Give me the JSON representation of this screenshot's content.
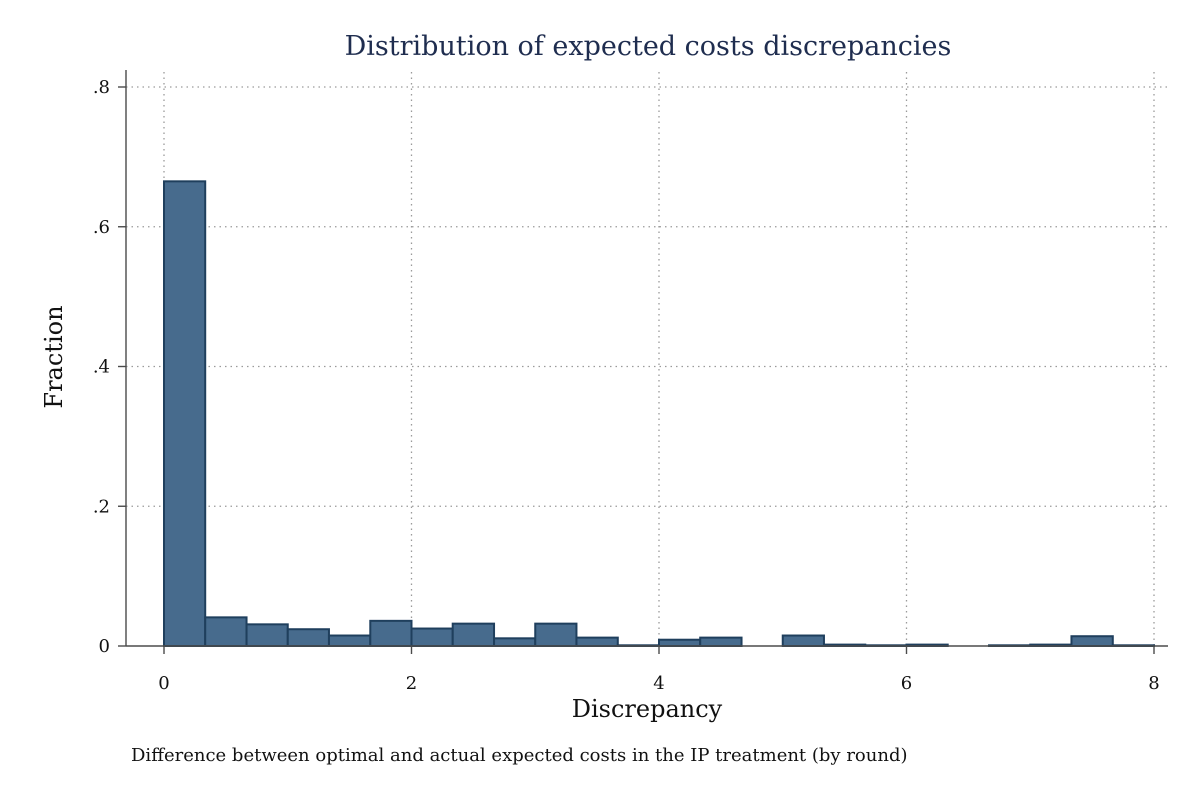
{
  "chart_data": {
    "type": "bar",
    "title": "Distribution of expected costs discrepancies",
    "xlabel": "Discrepancy",
    "ylabel": "Fraction",
    "note": "Difference between optimal and actual expected costs in the IP treatment (by round)",
    "xlim": [
      0,
      8
    ],
    "ylim": [
      0,
      0.8
    ],
    "x_ticks": [
      0,
      2,
      4,
      6,
      8
    ],
    "x_tick_labels": [
      "0",
      "2",
      "4",
      "6",
      "8"
    ],
    "y_ticks": [
      0,
      0.2,
      0.4,
      0.6,
      0.8
    ],
    "y_tick_labels": [
      "0",
      ".2",
      ".4",
      ".6",
      ".8"
    ],
    "grid": "both-dotted",
    "bin_width": 0.333,
    "bins": [
      {
        "start": 0.0,
        "end": 0.333,
        "value": 0.665
      },
      {
        "start": 0.333,
        "end": 0.667,
        "value": 0.041
      },
      {
        "start": 0.667,
        "end": 1.0,
        "value": 0.031
      },
      {
        "start": 1.0,
        "end": 1.333,
        "value": 0.024
      },
      {
        "start": 1.333,
        "end": 1.667,
        "value": 0.015
      },
      {
        "start": 1.667,
        "end": 2.0,
        "value": 0.036
      },
      {
        "start": 2.0,
        "end": 2.333,
        "value": 0.025
      },
      {
        "start": 2.333,
        "end": 2.667,
        "value": 0.032
      },
      {
        "start": 2.667,
        "end": 3.0,
        "value": 0.011
      },
      {
        "start": 3.0,
        "end": 3.333,
        "value": 0.032
      },
      {
        "start": 3.333,
        "end": 3.667,
        "value": 0.012
      },
      {
        "start": 3.667,
        "end": 4.0,
        "value": 0.001
      },
      {
        "start": 4.0,
        "end": 4.333,
        "value": 0.009
      },
      {
        "start": 4.333,
        "end": 4.667,
        "value": 0.012
      },
      {
        "start": 4.667,
        "end": 5.0,
        "value": 0.0
      },
      {
        "start": 5.0,
        "end": 5.333,
        "value": 0.015
      },
      {
        "start": 5.333,
        "end": 5.667,
        "value": 0.002
      },
      {
        "start": 5.667,
        "end": 6.0,
        "value": 0.001
      },
      {
        "start": 6.0,
        "end": 6.333,
        "value": 0.002
      },
      {
        "start": 6.333,
        "end": 6.667,
        "value": 0.0
      },
      {
        "start": 6.667,
        "end": 7.0,
        "value": 0.001
      },
      {
        "start": 7.0,
        "end": 7.333,
        "value": 0.002
      },
      {
        "start": 7.333,
        "end": 7.667,
        "value": 0.014
      },
      {
        "start": 7.667,
        "end": 8.0,
        "value": 0.001
      }
    ],
    "colors": {
      "bar_fill": "#476b8d",
      "bar_stroke": "#1f3f5d",
      "title": "#1f2d4f",
      "grid": "#9a9a9a",
      "axis": "#4b4b4b"
    }
  }
}
